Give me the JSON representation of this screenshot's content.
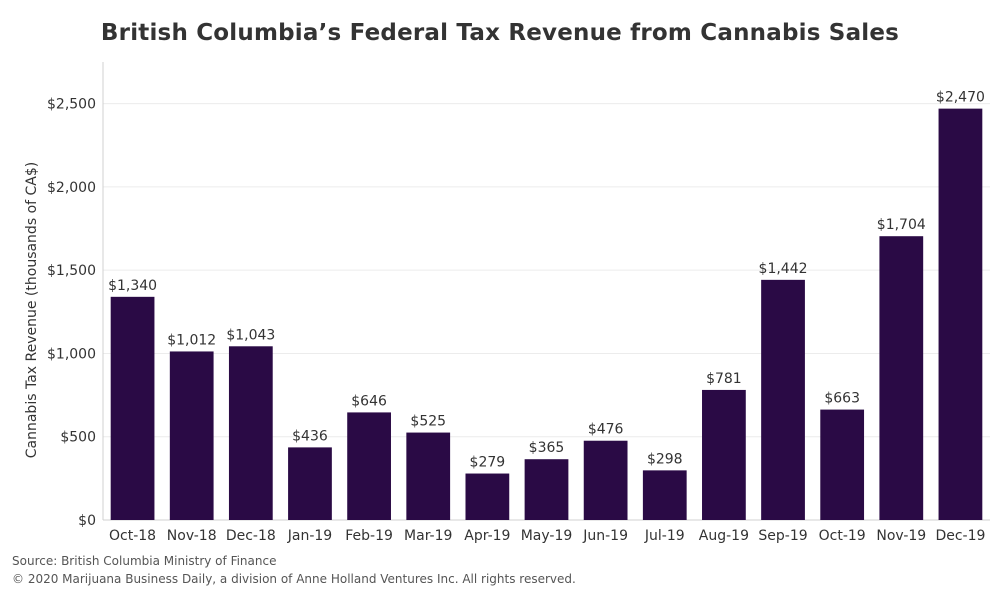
{
  "chart_data": {
    "type": "bar",
    "title": "British Columbia’s Federal Tax Revenue from Cannabis Sales",
    "ylabel": "Cannabis Tax Revenue (thousands of CA$)",
    "xlabel": "",
    "categories": [
      "Oct-18",
      "Nov-18",
      "Dec-18",
      "Jan-19",
      "Feb-19",
      "Mar-19",
      "Apr-19",
      "May-19",
      "Jun-19",
      "Jul-19",
      "Aug-19",
      "Sep-19",
      "Oct-19",
      "Nov-19",
      "Dec-19"
    ],
    "values": [
      1340,
      1012,
      1043,
      436,
      646,
      525,
      279,
      365,
      476,
      298,
      781,
      1442,
      663,
      1704,
      2470
    ],
    "value_labels": [
      "$1,340",
      "$1,012",
      "$1,043",
      "$436",
      "$646",
      "$525",
      "$279",
      "$365",
      "$476",
      "$298",
      "$781",
      "$1,442",
      "$663",
      "$1,704",
      "$2,470"
    ],
    "yticks": [
      0,
      500,
      1000,
      1500,
      2000,
      2500
    ],
    "ytick_labels": [
      "$0",
      "$500",
      "$1,000",
      "$1,500",
      "$2,000",
      "$2,500"
    ],
    "ylim": [
      0,
      2750
    ],
    "grid": true,
    "bar_color": "#2a0a45"
  },
  "footer": {
    "source": "Source: British Columbia Ministry of Finance",
    "copyright": "© 2020 Marijuana Business Daily, a division of Anne Holland Ventures Inc. All rights reserved."
  }
}
